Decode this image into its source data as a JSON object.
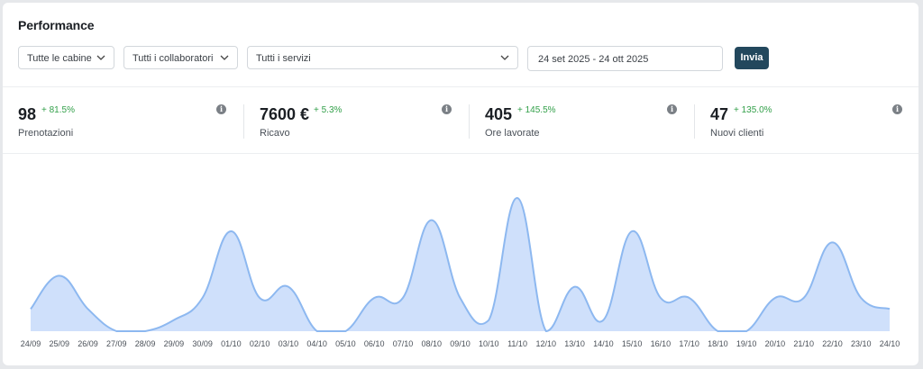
{
  "title": "Performance",
  "filters": {
    "cabins": "Tutte le cabine",
    "staff": "Tutti i collaboratori",
    "services": "Tutti i servizi",
    "date_range": "24 set 2025 - 24 ott 2025",
    "submit_label": "Invia"
  },
  "stats": [
    {
      "value": "98",
      "change": "+ 81.5%",
      "label": "Prenotazioni"
    },
    {
      "value": "7600 €",
      "change": "+ 5.3%",
      "label": "Ricavo"
    },
    {
      "value": "405",
      "change": "+ 145.5%",
      "label": "Ore lavorate"
    },
    {
      "value": "47",
      "change": "+ 135.0%",
      "label": "Nuovi clienti"
    }
  ],
  "colors": {
    "accent_button": "#23485d",
    "positive_change": "#33a04a",
    "area_fill": "#cfe0fb",
    "area_line": "#8db8f0"
  },
  "chart_data": {
    "type": "area",
    "categories": [
      "24/09",
      "25/09",
      "26/09",
      "27/09",
      "28/09",
      "29/09",
      "30/09",
      "01/10",
      "02/10",
      "03/10",
      "04/10",
      "05/10",
      "06/10",
      "07/10",
      "08/10",
      "09/10",
      "10/10",
      "11/10",
      "12/10",
      "13/10",
      "14/10",
      "15/10",
      "16/10",
      "17/10",
      "18/10",
      "19/10",
      "20/10",
      "21/10",
      "22/10",
      "23/10",
      "24/10"
    ],
    "values": [
      2,
      5,
      2,
      0,
      0,
      1,
      3,
      9,
      3,
      4,
      0,
      0,
      3,
      3,
      10,
      3,
      1,
      12,
      0,
      4,
      1,
      9,
      3,
      3,
      0,
      0,
      3,
      3,
      8,
      3,
      2
    ],
    "ylim": [
      0,
      12
    ],
    "grid": false,
    "title": "",
    "xlabel": "",
    "ylabel": ""
  }
}
